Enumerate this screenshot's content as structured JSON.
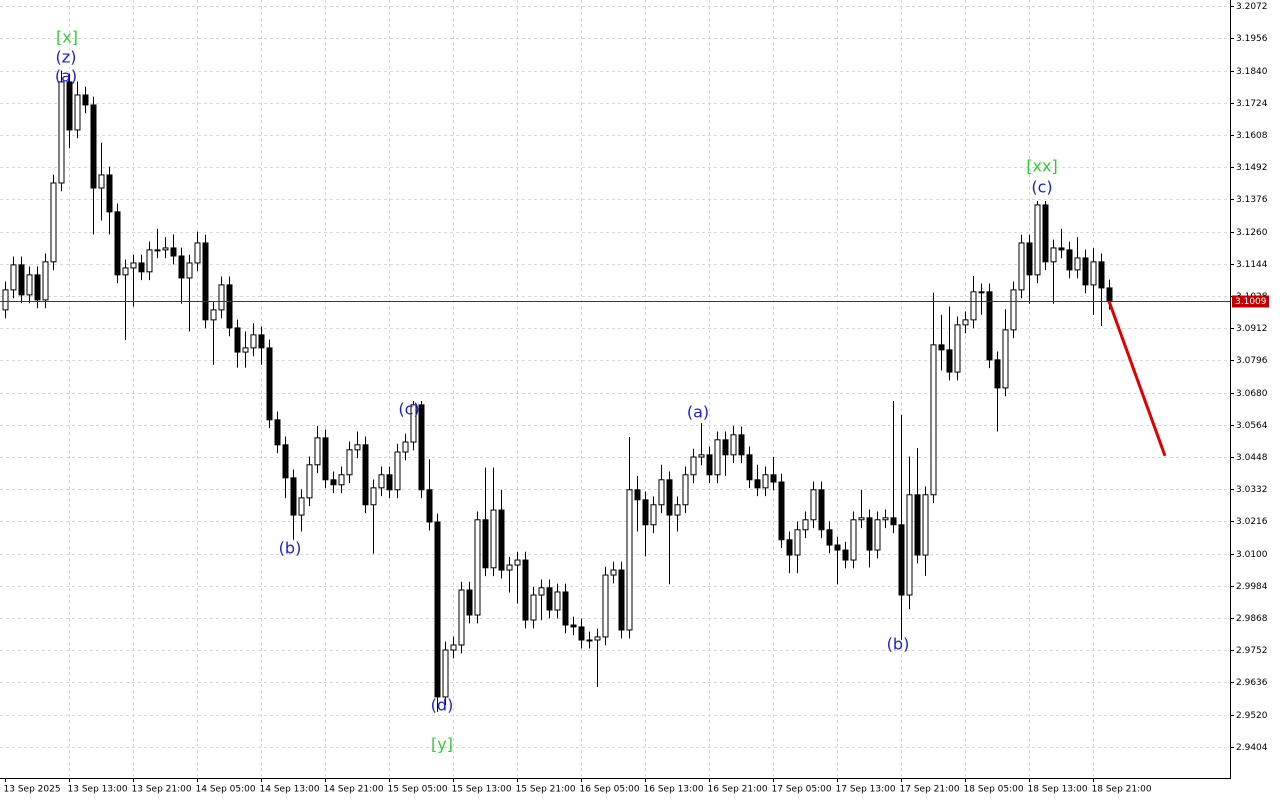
{
  "chart_data": {
    "type": "candlestick",
    "ylim": [
      2.9292,
      3.2094
    ],
    "yticks": [
      3.2072,
      3.1956,
      {
        "value": 3.184,
        "label": "3.1840"
      },
      3.1724,
      3.1608,
      3.1492,
      3.1376,
      {
        "value": 3.126,
        "label": "3.1260"
      },
      3.1144,
      3.1028,
      3.0912,
      3.0796,
      {
        "value": 3.068,
        "label": "3.0680"
      },
      3.0564,
      3.0448,
      3.0332,
      3.0216,
      {
        "value": 3.01,
        "label": "3.0100"
      },
      2.9984,
      2.9868,
      2.9752,
      2.9636,
      {
        "value": 2.952,
        "label": "2.9520"
      },
      2.9404
    ],
    "xlim": [
      -0.625,
      153.125
    ],
    "xticks": [
      {
        "value": 0,
        "label": "13 Sep 2025"
      },
      {
        "value": 8,
        "label": "13 Sep 13:00"
      },
      {
        "value": 16,
        "label": "13 Sep 21:00"
      },
      {
        "value": 24,
        "label": "14 Sep 05:00"
      },
      {
        "value": 32,
        "label": "14 Sep 13:00"
      },
      {
        "value": 40,
        "label": "14 Sep 21:00"
      },
      {
        "value": 48,
        "label": "15 Sep 05:00"
      },
      {
        "value": 56,
        "label": "15 Sep 13:00"
      },
      {
        "value": 64,
        "label": "15 Sep 21:00"
      },
      {
        "value": 72,
        "label": "16 Sep 05:00"
      },
      {
        "value": 80,
        "label": "16 Sep 13:00"
      },
      {
        "value": 88,
        "label": "16 Sep 21:00"
      },
      {
        "value": 96,
        "label": "17 Sep 05:00"
      },
      {
        "value": 104,
        "label": "17 Sep 13:00"
      },
      {
        "value": 112,
        "label": "17 Sep 21:00"
      },
      {
        "value": 120,
        "label": "18 Sep 05:00"
      },
      {
        "value": 128,
        "label": "18 Sep 13:00"
      },
      {
        "value": 136,
        "label": "18 Sep 21:00"
      }
    ],
    "grid": true,
    "up_color": "#ffffff",
    "down_color": "#000000",
    "values": [
      [
        3.0978,
        3.108,
        3.0948,
        3.105
      ],
      [
        3.105,
        3.117,
        3.102,
        3.114
      ],
      [
        3.114,
        3.117,
        3.1002,
        3.1032
      ],
      [
        3.1032,
        3.1134,
        3.1002,
        3.1104
      ],
      [
        3.1104,
        3.1134,
        3.0984,
        3.1014
      ],
      [
        3.1014,
        3.1181,
        3.0984,
        3.1151
      ],
      [
        3.1151,
        3.1465,
        3.1121,
        3.1435
      ],
      [
        3.1435,
        3.184,
        3.1405,
        3.1799
      ],
      [
        3.1799,
        3.1829,
        3.156,
        3.1626
      ],
      [
        3.1626,
        3.18,
        3.1596,
        3.1752
      ],
      [
        3.1752,
        3.1782,
        3.1686,
        3.1716
      ],
      [
        3.1716,
        3.1746,
        3.125,
        3.1417
      ],
      [
        3.1417,
        3.158,
        3.13,
        3.1464
      ],
      [
        3.1464,
        3.1494,
        3.125,
        3.1331
      ],
      [
        3.1331,
        3.1361,
        3.1074,
        3.1104
      ],
      [
        3.1104,
        3.1159,
        3.087,
        3.1129
      ],
      [
        3.1129,
        3.1177,
        3.099,
        3.1147
      ],
      [
        3.1147,
        3.1177,
        3.1085,
        3.1115
      ],
      [
        3.1115,
        3.1224,
        3.1085,
        3.1194
      ],
      [
        3.1194,
        3.127,
        3.1164,
        3.1194
      ],
      [
        3.1194,
        3.124,
        3.1164,
        3.1201
      ],
      [
        3.1201,
        3.125,
        3.1142,
        3.1172
      ],
      [
        3.1172,
        3.1202,
        3.1,
        3.1093
      ],
      [
        3.1093,
        3.1177,
        3.09,
        3.1147
      ],
      [
        3.1147,
        3.126,
        3.1117,
        3.1219
      ],
      [
        3.1219,
        3.1249,
        3.0912,
        3.0942
      ],
      [
        3.0942,
        3.1008,
        3.078,
        3.0978
      ],
      [
        3.0978,
        3.1098,
        3.0948,
        3.1068
      ],
      [
        3.1068,
        3.1098,
        3.0883,
        3.0913
      ],
      [
        3.0913,
        3.0943,
        3.077,
        3.0826
      ],
      [
        3.0826,
        3.09,
        3.077,
        3.0841
      ],
      [
        3.0841,
        3.093,
        3.0811,
        3.0888
      ],
      [
        3.0888,
        3.0918,
        3.078,
        3.0841
      ],
      [
        3.0841,
        3.0871,
        3.0552,
        3.0582
      ],
      [
        3.0582,
        3.0612,
        3.0462,
        3.0492
      ],
      [
        3.0492,
        3.0522,
        3.03,
        3.0373
      ],
      [
        3.0373,
        3.0403,
        3.015,
        3.0239
      ],
      [
        3.0239,
        3.0331,
        3.018,
        3.0301
      ],
      [
        3.0301,
        3.045,
        3.0271,
        3.042
      ],
      [
        3.042,
        3.056,
        3.039,
        3.0517
      ],
      [
        3.0517,
        3.0547,
        3.0336,
        3.0366
      ],
      [
        3.0366,
        3.0396,
        3.0318,
        3.0348
      ],
      [
        3.0348,
        3.0414,
        3.0318,
        3.0384
      ],
      [
        3.0384,
        3.0504,
        3.0354,
        3.0474
      ],
      [
        3.0474,
        3.054,
        3.0444,
        3.0492
      ],
      [
        3.0492,
        3.0522,
        3.0246,
        3.0276
      ],
      [
        3.0276,
        3.0367,
        3.01,
        3.0337
      ],
      [
        3.0337,
        3.0414,
        3.0307,
        3.0384
      ],
      [
        3.0384,
        3.0414,
        3.03,
        3.033
      ],
      [
        3.033,
        3.0496,
        3.03,
        3.0466
      ],
      [
        3.0466,
        3.0532,
        3.0436,
        3.0502
      ],
      [
        3.0502,
        3.065,
        3.0472,
        3.0636
      ],
      [
        3.0636,
        3.065,
        3.03,
        3.033
      ],
      [
        3.033,
        3.044,
        3.0184,
        3.0214
      ],
      [
        3.0214,
        3.0244,
        2.953,
        2.9584
      ],
      [
        2.9584,
        2.9783,
        2.9554,
        2.9753
      ],
      [
        2.9753,
        2.9801,
        2.9723,
        2.9771
      ],
      [
        2.9771,
        2.9999,
        2.9741,
        2.9969
      ],
      [
        2.9969,
        2.9999,
        2.9849,
        2.9879
      ],
      [
        2.9879,
        3.0252,
        2.9849,
        3.0222
      ],
      [
        3.0222,
        3.041,
        3.0019,
        3.0049
      ],
      [
        3.0049,
        3.041,
        3.0019,
        3.0257
      ],
      [
        3.0257,
        3.033,
        3.0011,
        3.0041
      ],
      [
        3.0041,
        3.0089,
        2.996,
        3.0059
      ],
      [
        3.0059,
        3.0107,
        2.992,
        3.0077
      ],
      [
        3.0077,
        3.0107,
        2.9831,
        2.9861
      ],
      [
        2.9861,
        2.9981,
        2.9831,
        2.9951
      ],
      [
        2.9951,
        3.0007,
        2.986,
        2.9977
      ],
      [
        2.9977,
        3.0007,
        2.9867,
        2.9897
      ],
      [
        2.9897,
        2.9992,
        2.9867,
        2.9962
      ],
      [
        2.9962,
        2.9992,
        2.9813,
        2.9843
      ],
      [
        2.9843,
        2.9873,
        2.9806,
        2.9836
      ],
      [
        2.9836,
        2.9866,
        2.9759,
        2.9789
      ],
      [
        2.9789,
        2.9819,
        2.9759,
        2.9789
      ],
      [
        2.9789,
        2.983,
        2.962,
        2.98
      ],
      [
        2.98,
        3.0053,
        2.977,
        3.0023
      ],
      [
        3.0023,
        3.0071,
        2.9993,
        3.0041
      ],
      [
        3.0041,
        3.0071,
        2.9795,
        2.9825
      ],
      [
        2.9825,
        3.052,
        2.9795,
        3.033
      ],
      [
        3.033,
        3.038,
        3.018,
        3.0294
      ],
      [
        3.0294,
        3.0324,
        3.009,
        3.0204
      ],
      [
        3.0204,
        3.0306,
        3.0174,
        3.0276
      ],
      [
        3.0276,
        3.042,
        3.0246,
        3.0366
      ],
      [
        3.0366,
        3.0396,
        2.999,
        3.0239
      ],
      [
        3.0239,
        3.0306,
        3.018,
        3.0276
      ],
      [
        3.0276,
        3.0414,
        3.0246,
        3.0384
      ],
      [
        3.0384,
        3.0478,
        3.0354,
        3.0448
      ],
      [
        3.0448,
        3.057,
        3.0418,
        3.0456
      ],
      [
        3.0456,
        3.0486,
        3.0354,
        3.0384
      ],
      [
        3.0384,
        3.054,
        3.0354,
        3.051
      ],
      [
        3.051,
        3.054,
        3.038,
        3.0456
      ],
      [
        3.0456,
        3.056,
        3.0426,
        3.0528
      ],
      [
        3.0528,
        3.0558,
        3.0426,
        3.0456
      ],
      [
        3.0456,
        3.0486,
        3.0336,
        3.0366
      ],
      [
        3.0366,
        3.042,
        3.0307,
        3.0337
      ],
      [
        3.0337,
        3.0414,
        3.0307,
        3.0384
      ],
      [
        3.0384,
        3.0448,
        3.0328,
        3.0358
      ],
      [
        3.0358,
        3.0388,
        3.012,
        3.015
      ],
      [
        3.015,
        3.018,
        3.003,
        3.0095
      ],
      [
        3.0095,
        3.0216,
        3.003,
        3.0186
      ],
      [
        3.0186,
        3.0252,
        3.0156,
        3.0222
      ],
      [
        3.0222,
        3.036,
        3.0192,
        3.033
      ],
      [
        3.033,
        3.036,
        3.0156,
        3.0186
      ],
      [
        3.0186,
        3.0216,
        3.0101,
        3.0131
      ],
      [
        3.0131,
        3.0161,
        2.999,
        3.0113
      ],
      [
        3.0113,
        3.0143,
        3.0047,
        3.0077
      ],
      [
        3.0077,
        3.0252,
        3.0047,
        3.0222
      ],
      [
        3.0222,
        3.033,
        3.0192,
        3.0229
      ],
      [
        3.0229,
        3.0259,
        3.005,
        3.0113
      ],
      [
        3.0113,
        3.0252,
        3.0083,
        3.0222
      ],
      [
        3.0222,
        3.0259,
        3.0192,
        3.0229
      ],
      [
        3.0229,
        3.065,
        3.0174,
        3.0204
      ],
      [
        3.0204,
        3.06,
        2.979,
        2.9951
      ],
      [
        2.9951,
        3.045,
        2.99,
        3.0312
      ],
      [
        3.0312,
        3.048,
        3.0065,
        3.0095
      ],
      [
        3.0095,
        3.0342,
        3.002,
        3.0312
      ],
      [
        3.0312,
        3.104,
        3.0282,
        3.0852
      ],
      [
        3.0852,
        3.096,
        3.076,
        3.0834
      ],
      [
        3.0834,
        3.099,
        3.0724,
        3.0754
      ],
      [
        3.0754,
        3.0954,
        3.0724,
        3.0924
      ],
      [
        3.0924,
        3.0972,
        3.0894,
        3.0942
      ],
      [
        3.0942,
        3.11,
        3.0912,
        3.1043
      ],
      [
        3.1043,
        3.1073,
        3.096,
        3.1043
      ],
      [
        3.1043,
        3.1073,
        3.0768,
        3.0798
      ],
      [
        3.0798,
        3.0828,
        3.054,
        3.0697
      ],
      [
        3.0697,
        3.098,
        3.0667,
        3.0906
      ],
      [
        3.0906,
        3.108,
        3.0876,
        3.105
      ],
      [
        3.105,
        3.1249,
        3.102,
        3.1219
      ],
      [
        3.1219,
        3.1249,
        3.1,
        3.1104
      ],
      [
        3.1104,
        3.137,
        3.1074,
        3.1356
      ],
      [
        3.1356,
        3.137,
        3.1121,
        3.1151
      ],
      [
        3.1151,
        3.1231,
        3.1,
        3.1201
      ],
      [
        3.1201,
        3.127,
        3.1164,
        3.1194
      ],
      [
        3.1194,
        3.1224,
        3.1092,
        3.1122
      ],
      [
        3.1122,
        3.124,
        3.1092,
        3.1165
      ],
      [
        3.1165,
        3.1195,
        3.1038,
        3.1068
      ],
      [
        3.1068,
        3.12,
        3.096,
        3.1151
      ],
      [
        3.1151,
        3.1181,
        3.092,
        3.1057
      ],
      [
        3.1057,
        3.1087,
        3.0979,
        3.1009
      ]
    ],
    "price_line": {
      "value": 3.1009,
      "color": "#c00000"
    },
    "forecast": {
      "color": "#e00000",
      "x": [
        138,
        145
      ],
      "values": [
        3.1009,
        3.0452
      ]
    },
    "annotations": [
      {
        "text": "[x]",
        "color": "#32cd32"
      },
      {
        "text": "(z)",
        "color": "#1e1ec8"
      },
      {
        "text": "(a)",
        "color": "#1e1ec8"
      },
      {
        "text": "(b)",
        "color": "#1e1ec8"
      },
      {
        "text": "(c)",
        "color": "#1e1ec8"
      },
      {
        "text": "(d)",
        "color": "#1e1ec8"
      },
      {
        "text": "[y]",
        "color": "#32cd32"
      },
      {
        "text": "(a)",
        "color": "#1e1ec8"
      },
      {
        "text": "(b)",
        "color": "#1e1ec8"
      },
      {
        "text": "[xx]",
        "color": "#32cd32"
      },
      {
        "text": "(c)",
        "color": "#1e1ec8"
      }
    ]
  }
}
